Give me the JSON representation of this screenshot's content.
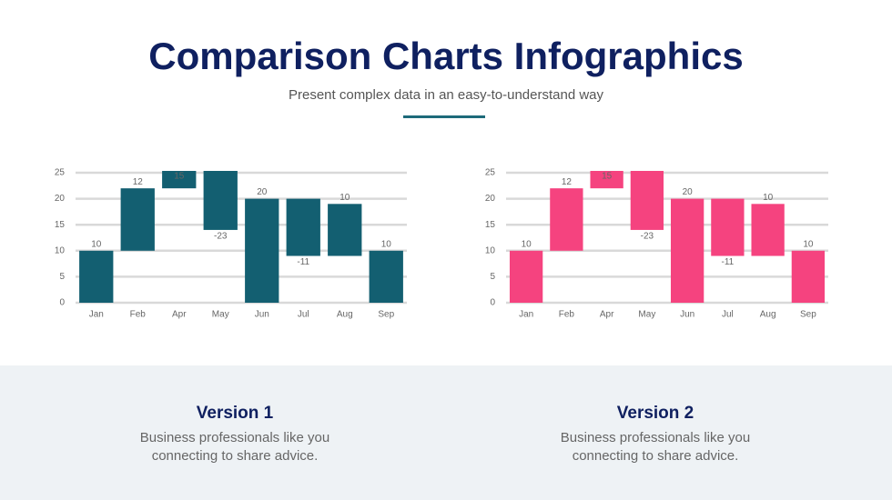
{
  "header": {
    "title": "Comparison Charts Infographics",
    "subtitle": "Present complex data in an easy-to-understand way"
  },
  "chart_data": [
    {
      "type": "waterfall",
      "categories": [
        "Jan",
        "Feb",
        "Apr",
        "May",
        "Jun",
        "Jul",
        "Aug",
        "Sep"
      ],
      "values": [
        10,
        12,
        15,
        -23,
        20,
        -11,
        10,
        10
      ],
      "from_zero": [
        true,
        false,
        false,
        false,
        true,
        false,
        false,
        true
      ],
      "color": "#135f71",
      "ylim": [
        0,
        25
      ],
      "yticks": [
        0,
        5,
        10,
        15,
        20,
        25
      ],
      "grid": true
    },
    {
      "type": "waterfall",
      "categories": [
        "Jan",
        "Feb",
        "Apr",
        "May",
        "Jun",
        "Jul",
        "Aug",
        "Sep"
      ],
      "values": [
        10,
        12,
        15,
        -23,
        20,
        -11,
        10,
        10
      ],
      "from_zero": [
        true,
        false,
        false,
        false,
        true,
        false,
        false,
        true
      ],
      "color": "#f5437f",
      "ylim": [
        0,
        25
      ],
      "yticks": [
        0,
        5,
        10,
        15,
        20,
        25
      ],
      "grid": true
    }
  ],
  "cards": [
    {
      "title": "Version 1",
      "text": "Business professionals like you connecting to share advice."
    },
    {
      "title": "Version 2",
      "text": "Business professionals like you connecting to share advice."
    }
  ]
}
